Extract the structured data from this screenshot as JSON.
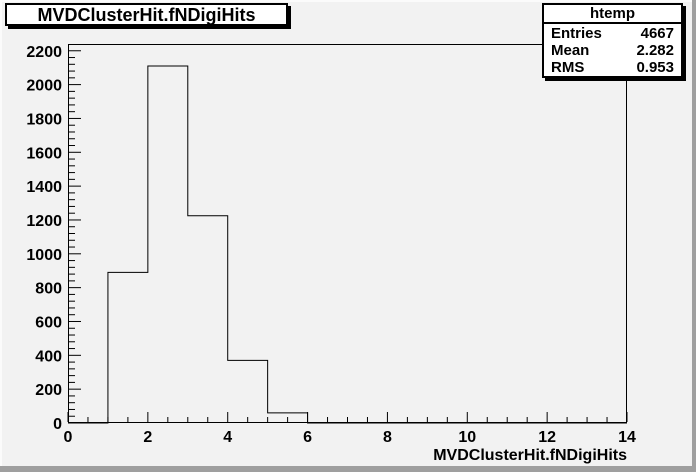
{
  "window": {
    "background_color": "#f2f2f2",
    "border_gray_color": "#9f9f9f"
  },
  "header": {
    "title": "MVDClusterHit.fNDigiHits"
  },
  "stats": {
    "title": "htemp",
    "rows": [
      {
        "label": "Entries",
        "value": "4667"
      },
      {
        "label": "Mean",
        "value": "2.282"
      },
      {
        "label": "RMS",
        "value": "0.953"
      }
    ]
  },
  "chart_data": {
    "type": "bar",
    "style": "root-step-histogram-outline",
    "title": "MVDClusterHit.fNDigiHits",
    "xlabel": "MVDClusterHit.fNDigiHits",
    "ylabel": "",
    "bin_edges": [
      0,
      1,
      2,
      3,
      4,
      5,
      6,
      7,
      8,
      9,
      10,
      11,
      12,
      13,
      14
    ],
    "values": [
      0,
      890,
      2110,
      1225,
      370,
      60,
      0,
      0,
      0,
      0,
      0,
      0,
      0,
      0
    ],
    "xlim": [
      0,
      14
    ],
    "ylim": [
      0,
      2240
    ],
    "x_tick_labels": [
      "0",
      "2",
      "4",
      "6",
      "8",
      "10",
      "12",
      "14"
    ],
    "x_tick_values": [
      0,
      2,
      4,
      6,
      8,
      10,
      12,
      14
    ],
    "x_minor_tick_step": 0.5,
    "y_tick_labels": [
      "0",
      "200",
      "400",
      "600",
      "800",
      "1000",
      "1200",
      "1400",
      "1600",
      "1800",
      "2000",
      "2200"
    ],
    "y_tick_values": [
      0,
      200,
      400,
      600,
      800,
      1000,
      1200,
      1400,
      1600,
      1800,
      2000,
      2200
    ],
    "y_minor_tick_step": 40,
    "line_color": "#000000",
    "text_color": "#000000",
    "grid": false,
    "legend": false
  }
}
